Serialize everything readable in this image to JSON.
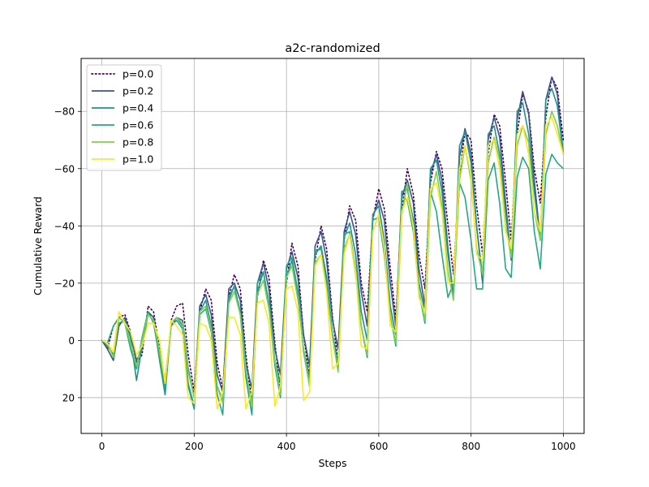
{
  "chart_data": {
    "type": "line",
    "title": "a2c-randomized",
    "xlabel": "Steps",
    "ylabel": "Cumulative Reward",
    "xlim": [
      -45,
      1045
    ],
    "ylim": [
      32.5,
      -98.5
    ],
    "y_axis_inverted": true,
    "xticks": [
      0,
      200,
      400,
      600,
      800,
      1000
    ],
    "yticks": [
      -80,
      -60,
      -40,
      -20,
      0,
      20
    ],
    "ytick_labels": [
      "−80",
      "−60",
      "−40",
      "−20",
      "0",
      "20"
    ],
    "grid": true,
    "legend_position": "upper-left",
    "series": [
      {
        "name": "p=0.0",
        "color": "#440154",
        "style": "dotted",
        "x": [
          0,
          12,
          25,
          37,
          50,
          62,
          75,
          87,
          100,
          112,
          125,
          137,
          150,
          162,
          175,
          187,
          200,
          212,
          225,
          237,
          250,
          262,
          275,
          287,
          300,
          312,
          325,
          337,
          350,
          362,
          375,
          387,
          400,
          412,
          425,
          437,
          450,
          462,
          475,
          487,
          500,
          512,
          525,
          537,
          550,
          562,
          575,
          587,
          600,
          612,
          625,
          637,
          650,
          662,
          675,
          687,
          700,
          712,
          725,
          737,
          750,
          762,
          775,
          787,
          800,
          812,
          825,
          837,
          850,
          862,
          875,
          887,
          900,
          912,
          925,
          937,
          950,
          962,
          975,
          987,
          1000
        ],
        "y": [
          0,
          3,
          -5,
          -8,
          -9,
          -3,
          8,
          5,
          -12,
          -10,
          3,
          18,
          -7,
          -12,
          -13,
          5,
          18,
          -10,
          -18,
          -14,
          8,
          17,
          -15,
          -23,
          -18,
          5,
          22,
          -15,
          -28,
          -22,
          1,
          18,
          -20,
          -34,
          -26,
          -2,
          13,
          -28,
          -40,
          -32,
          -8,
          8,
          -35,
          -47,
          -42,
          -20,
          -10,
          -42,
          -53,
          -46,
          -25,
          -8,
          -45,
          -60,
          -51,
          -30,
          -18,
          -55,
          -66,
          -60,
          -40,
          -23,
          -58,
          -73,
          -70,
          -47,
          -30,
          -65,
          -79,
          -75,
          -55,
          -35,
          -72,
          -86,
          -80,
          -60,
          -48,
          -78,
          -92,
          -88,
          -70
        ]
      },
      {
        "name": "p=0.2",
        "color": "#3b528b",
        "style": "solid",
        "x": [
          0,
          12,
          25,
          37,
          50,
          62,
          75,
          87,
          100,
          112,
          125,
          137,
          150,
          162,
          175,
          187,
          200,
          212,
          225,
          237,
          250,
          262,
          275,
          287,
          300,
          312,
          325,
          337,
          350,
          362,
          375,
          387,
          400,
          412,
          425,
          437,
          450,
          462,
          475,
          487,
          500,
          512,
          525,
          537,
          550,
          562,
          575,
          587,
          600,
          612,
          625,
          637,
          650,
          662,
          675,
          687,
          700,
          712,
          725,
          737,
          750,
          762,
          775,
          787,
          800,
          812,
          825,
          837,
          850,
          862,
          875,
          887,
          900,
          912,
          925,
          937,
          950,
          962,
          975,
          987,
          1000
        ],
        "y": [
          0,
          3,
          7,
          -5,
          -8,
          -2,
          7,
          3,
          -10,
          -8,
          5,
          14,
          -5,
          -8,
          -7,
          10,
          20,
          -12,
          -16,
          -9,
          12,
          18,
          -18,
          -20,
          -14,
          8,
          17,
          -20,
          -27,
          -18,
          3,
          12,
          -25,
          -31,
          -22,
          -2,
          9,
          -33,
          -38,
          -28,
          -7,
          3,
          -38,
          -45,
          -37,
          -17,
          -5,
          -43,
          -49,
          -42,
          -20,
          -5,
          -50,
          -56,
          -48,
          -25,
          -12,
          -58,
          -65,
          -56,
          -32,
          -15,
          -64,
          -74,
          -65,
          -40,
          -20,
          -70,
          -78,
          -71,
          -48,
          -28,
          -77,
          -87,
          -79,
          -56,
          -35,
          -84,
          -92,
          -86,
          -65
        ]
      },
      {
        "name": "p=0.4",
        "color": "#21918c",
        "style": "solid",
        "x": [
          0,
          12,
          25,
          37,
          50,
          62,
          75,
          87,
          100,
          112,
          125,
          137,
          150,
          162,
          175,
          187,
          200,
          212,
          225,
          237,
          250,
          262,
          275,
          287,
          300,
          312,
          325,
          337,
          350,
          362,
          375,
          387,
          400,
          412,
          425,
          437,
          450,
          462,
          475,
          487,
          500,
          512,
          525,
          537,
          550,
          562,
          575,
          587,
          600,
          612,
          625,
          637,
          650,
          662,
          675,
          687,
          700,
          712,
          725,
          737,
          750,
          762,
          775,
          787,
          800,
          812,
          825,
          837,
          850,
          862,
          875,
          887,
          900,
          912,
          925,
          937,
          950,
          962,
          975,
          987,
          1000
        ],
        "y": [
          0,
          2,
          5,
          -6,
          -7,
          -1,
          14,
          2,
          -9,
          -7,
          7,
          19,
          -6,
          -8,
          -5,
          16,
          24,
          -10,
          -14,
          -5,
          16,
          21,
          -14,
          -19,
          -10,
          11,
          22,
          -17,
          -24,
          -13,
          7,
          15,
          -22,
          -28,
          -16,
          3,
          13,
          -30,
          -33,
          -22,
          -2,
          8,
          -36,
          -41,
          -30,
          -10,
          0,
          -44,
          -47,
          -35,
          -12,
          -2,
          -52,
          -53,
          -42,
          -20,
          -10,
          -60,
          -63,
          -52,
          -30,
          -15,
          -68,
          -73,
          -62,
          -40,
          -22,
          -72,
          -75,
          -65,
          -45,
          -28,
          -80,
          -83,
          -72,
          -52,
          -35,
          -84,
          -88,
          -82,
          -65
        ]
      },
      {
        "name": "p=0.6",
        "color": "#22a884",
        "style": "solid",
        "x": [
          0,
          12,
          25,
          37,
          50,
          62,
          75,
          87,
          100,
          112,
          125,
          137,
          150,
          162,
          175,
          187,
          200,
          212,
          225,
          237,
          250,
          262,
          275,
          287,
          300,
          312,
          325,
          337,
          350,
          362,
          375,
          387,
          400,
          412,
          425,
          437,
          450,
          462,
          475,
          487,
          500,
          512,
          525,
          537,
          550,
          562,
          575,
          587,
          600,
          612,
          625,
          637,
          650,
          662,
          675,
          687,
          700,
          712,
          725,
          737,
          750,
          762,
          775,
          787,
          800,
          812,
          825,
          837,
          850,
          862,
          875,
          887,
          900,
          912,
          925,
          937,
          950,
          962,
          975,
          987,
          1000
        ],
        "y": [
          0,
          1,
          -5,
          -8,
          -6,
          3,
          10,
          -1,
          -10,
          -6,
          6,
          17,
          -5,
          -7,
          -4,
          15,
          23,
          -9,
          -11,
          -3,
          19,
          26,
          -15,
          -19,
          -9,
          13,
          26,
          -20,
          -24,
          -12,
          9,
          20,
          -26,
          -29,
          -17,
          4,
          16,
          -31,
          -32,
          -20,
          -1,
          10,
          -37,
          -38,
          -25,
          -5,
          6,
          -42,
          -43,
          -30,
          -9,
          2,
          -50,
          -49,
          -38,
          -17,
          -6,
          -52,
          -45,
          -30,
          -15,
          -20,
          -55,
          -50,
          -35,
          -18,
          -18,
          -56,
          -62,
          -48,
          -25,
          -22,
          -57,
          -64,
          -60,
          -38,
          -25,
          -58,
          -65,
          -62,
          -60
        ]
      },
      {
        "name": "p=0.8",
        "color": "#7ad151",
        "style": "solid",
        "x": [
          0,
          12,
          25,
          37,
          50,
          62,
          75,
          87,
          100,
          112,
          125,
          137,
          150,
          162,
          175,
          187,
          200,
          212,
          225,
          237,
          250,
          262,
          275,
          287,
          300,
          312,
          325,
          337,
          350,
          362,
          375,
          387,
          400,
          412,
          425,
          437,
          450,
          462,
          475,
          487,
          500,
          512,
          525,
          537,
          550,
          562,
          575,
          587,
          600,
          612,
          625,
          637,
          650,
          662,
          675,
          687,
          700,
          712,
          725,
          737,
          750,
          762,
          775,
          787,
          800,
          812,
          825,
          837,
          850,
          862,
          875,
          887,
          900,
          912,
          925,
          937,
          950,
          962,
          975,
          987,
          1000
        ],
        "y": [
          0,
          1,
          6,
          -8,
          -6,
          1,
          9,
          0,
          -9,
          -7,
          4,
          15,
          -6,
          -8,
          -6,
          11,
          20,
          -10,
          -12,
          -4,
          16,
          22,
          -13,
          -17,
          -9,
          10,
          23,
          -16,
          -21,
          -11,
          7,
          19,
          -22,
          -26,
          -14,
          3,
          16,
          -27,
          -30,
          -18,
          -1,
          11,
          -32,
          -37,
          -23,
          -5,
          5,
          -38,
          -44,
          -31,
          -9,
          1,
          -44,
          -55,
          -39,
          -17,
          -7,
          -50,
          -59,
          -47,
          -24,
          -14,
          -56,
          -68,
          -56,
          -32,
          -23,
          -62,
          -71,
          -63,
          -40,
          -29,
          -68,
          -75,
          -69,
          -45,
          -35,
          -72,
          -80,
          -75,
          -65
        ]
      },
      {
        "name": "p=1.0",
        "color": "#fde725",
        "style": "solid",
        "x": [
          0,
          12,
          25,
          37,
          50,
          62,
          75,
          87,
          100,
          112,
          125,
          137,
          150,
          162,
          175,
          187,
          200,
          212,
          225,
          237,
          250,
          262,
          275,
          287,
          300,
          312,
          325,
          337,
          350,
          362,
          375,
          387,
          400,
          412,
          425,
          437,
          450,
          462,
          475,
          487,
          500,
          512,
          525,
          537,
          550,
          562,
          575,
          587,
          600,
          612,
          625,
          637,
          650,
          662,
          675,
          687,
          700,
          712,
          725,
          737,
          750,
          762,
          775,
          787,
          800,
          812,
          825,
          837,
          850,
          862,
          875,
          887,
          900,
          912,
          925,
          937,
          950,
          962,
          975,
          987,
          1000
        ],
        "y": [
          0,
          1,
          4,
          -10,
          -6,
          -3,
          5,
          2,
          -6,
          -6,
          0,
          15,
          -7,
          -5,
          -2,
          20,
          22,
          -6,
          -5,
          0,
          24,
          18,
          -8,
          -8,
          -2,
          24,
          18,
          -13,
          -14,
          -6,
          23,
          16,
          -18,
          -19,
          -10,
          21,
          18,
          -26,
          -30,
          -17,
          10,
          8,
          -30,
          -37,
          -24,
          2,
          3,
          -38,
          -44,
          -33,
          -5,
          -3,
          -45,
          -50,
          -40,
          -15,
          -10,
          -53,
          -55,
          -45,
          -20,
          -20,
          -60,
          -68,
          -58,
          -30,
          -28,
          -68,
          -70,
          -60,
          -38,
          -32,
          -72,
          -75,
          -65,
          -45,
          -38,
          -75,
          -78,
          -72,
          -65
        ]
      }
    ]
  }
}
